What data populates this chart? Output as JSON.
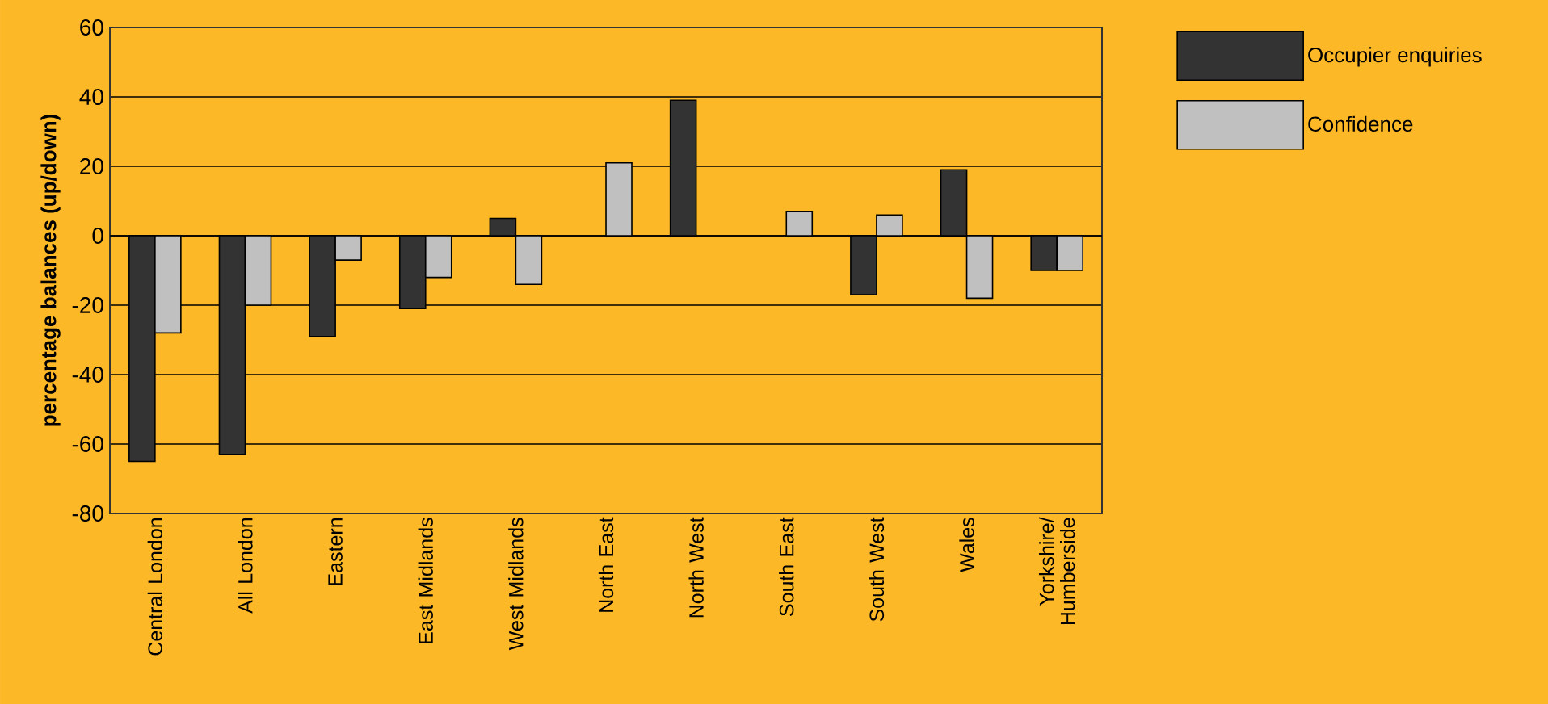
{
  "chart_data": {
    "type": "bar",
    "ylabel": "percentage balances (up/down)",
    "categories": [
      "Central London",
      "All London",
      "Eastern",
      "East Midlands",
      "West Midlands",
      "North East",
      "North West",
      "South East",
      "South West",
      "Wales",
      "Yorkshire/ Humberside"
    ],
    "series": [
      {
        "name": "Occupier enquiries",
        "color": "#333333",
        "values": [
          -65,
          -63,
          -29,
          -21,
          5,
          null,
          39,
          null,
          -17,
          19,
          -10
        ]
      },
      {
        "name": "Confidence",
        "color": "#c0c0c0",
        "values": [
          -28,
          -20,
          -7,
          -12,
          -14,
          21,
          null,
          7,
          6,
          -18,
          -10
        ]
      }
    ],
    "ylim": [
      -80,
      60
    ],
    "yticks": [
      -80,
      -60,
      -40,
      -20,
      0,
      20,
      40,
      60
    ],
    "grid": "y",
    "legend": "top right"
  }
}
